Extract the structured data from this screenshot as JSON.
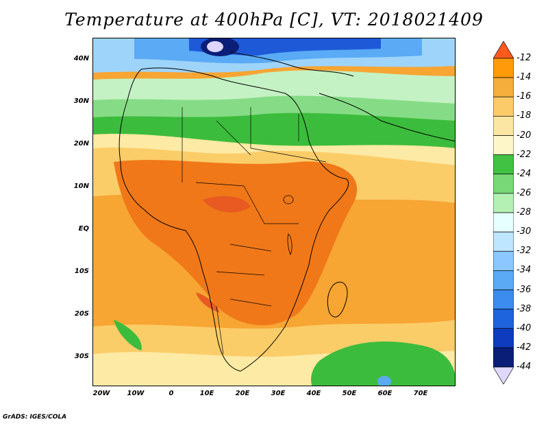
{
  "title": "Temperature at 400hPa [C], VT: 2018021409",
  "credit": "GrADS: IGES/COLA",
  "lat_labels": [
    "40N",
    "30N",
    "20N",
    "10N",
    "EQ",
    "10S",
    "20S",
    "30S"
  ],
  "lon_labels": [
    "20W",
    "10W",
    "0",
    "10E",
    "20E",
    "30E",
    "40E",
    "50E",
    "60E",
    "70E"
  ],
  "colorbar_labels": [
    "-12",
    "-14",
    "-16",
    "-18",
    "-20",
    "-22",
    "-24",
    "-26",
    "-28",
    "-30",
    "-32",
    "-34",
    "-36",
    "-38",
    "-40",
    "-42",
    "-44"
  ],
  "colorbar_colors": [
    "#ff5a1e",
    "#ff9a0a",
    "#f5ad3b",
    "#fbca69",
    "#fbe6a4",
    "#fdf6c9",
    "#42c242",
    "#78d878",
    "#b4f0b4",
    "#e6ffff",
    "#bfe6ff",
    "#8cc8ff",
    "#5aaaf5",
    "#3c8cf0",
    "#1e64dc",
    "#0f3cbe",
    "#0a1e78",
    "#e0d8ff"
  ],
  "colors": {
    "ocean": "#f7a533",
    "land": "#f5961e",
    "warm_core": "#f07818",
    "hot": "#e85a22",
    "yellow": "#fbcd69",
    "pale_yellow": "#fdeaa4",
    "green": "#3cbc3c",
    "light_green": "#86dc86",
    "pale_green": "#c4f2c4",
    "pale_cyan": "#e8fcff",
    "light_blue": "#9ed4fa",
    "blue": "#5aaaf5",
    "dark_blue": "#1e5ad8",
    "navy": "#0a1e78",
    "lavender": "#ded6ff"
  }
}
